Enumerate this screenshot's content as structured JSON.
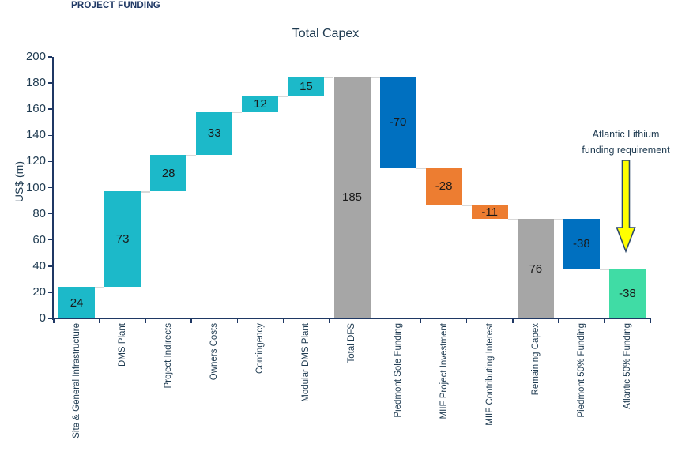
{
  "page": {
    "header": "PROJECT FUNDING"
  },
  "chart_data": {
    "type": "waterfall",
    "title": "Total Capex",
    "ylabel": "US$ (m)",
    "ylim": [
      0,
      200
    ],
    "ytick_step": 20,
    "grid": false,
    "legend": false,
    "colors": {
      "teal": "#1CB9C9",
      "blue": "#0070C0",
      "orange": "#ED7D31",
      "gray": "#A6A6A6",
      "mint": "#40DCA5",
      "axis": "#1F3864",
      "text": "#1E3A50",
      "connector": "#D9D9D9",
      "arrow_fill": "#FFFF00",
      "arrow_border": "#2E4A6B"
    },
    "bars": [
      {
        "name": "Site & General Infrastructure",
        "value": 24,
        "label": "24",
        "lo": 0,
        "hi": 24,
        "connect": 24,
        "color": "teal"
      },
      {
        "name": "DMS Plant",
        "value": 73,
        "label": "73",
        "lo": 24,
        "hi": 97,
        "connect": 97,
        "color": "teal"
      },
      {
        "name": "Project Indirects",
        "value": 28,
        "label": "28",
        "lo": 97,
        "hi": 125,
        "connect": 125,
        "color": "teal"
      },
      {
        "name": "Owners Costs",
        "value": 33,
        "label": "33",
        "lo": 125,
        "hi": 158,
        "connect": 158,
        "color": "teal"
      },
      {
        "name": "Contingency",
        "value": 12,
        "label": "12",
        "lo": 158,
        "hi": 170,
        "connect": 170,
        "color": "teal"
      },
      {
        "name": "Modular DMS Plant",
        "value": 15,
        "label": "15",
        "lo": 170,
        "hi": 185,
        "connect": 185,
        "color": "teal"
      },
      {
        "name": "Total DFS",
        "value": 185,
        "label": "185",
        "lo": 0,
        "hi": 185,
        "connect": 185,
        "color": "gray"
      },
      {
        "name": "Piedmont Sole Funding",
        "value": -70,
        "label": "-70",
        "lo": 115,
        "hi": 185,
        "connect": 115,
        "color": "blue"
      },
      {
        "name": "MIIF Project Investment",
        "value": -28,
        "label": "-28",
        "lo": 87,
        "hi": 115,
        "connect": 87,
        "color": "orange"
      },
      {
        "name": "MIIF Contributing Interest",
        "value": -11,
        "label": "-11",
        "lo": 76,
        "hi": 87,
        "connect": 76,
        "color": "orange"
      },
      {
        "name": "Remaining Capex",
        "value": 76,
        "label": "76",
        "lo": 0,
        "hi": 76,
        "connect": 76,
        "color": "gray"
      },
      {
        "name": "Piedmont 50% Funding",
        "value": -38,
        "label": "-38",
        "lo": 38,
        "hi": 76,
        "connect": 38,
        "color": "blue"
      },
      {
        "name": "Atlantic 50% Funding",
        "value": -38,
        "label": "-38",
        "lo": 0,
        "hi": 38,
        "connect": null,
        "color": "mint"
      }
    ],
    "annotation": {
      "lines": [
        "Atlantic Lithium",
        "funding requirement"
      ],
      "icon": "yellow-down-arrow"
    }
  }
}
